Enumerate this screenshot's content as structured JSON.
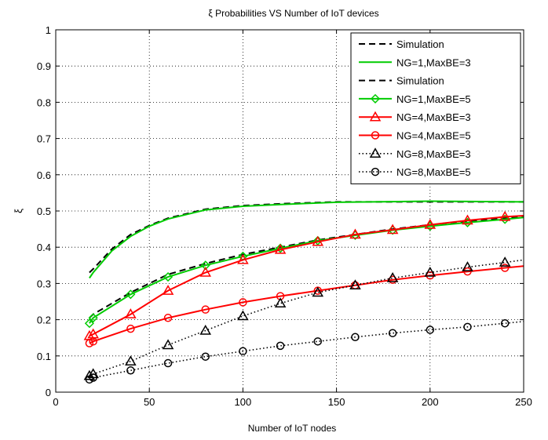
{
  "chart_data": {
    "type": "line",
    "title": "ξ Probabilities VS Number of IoT devices",
    "xlabel": "Number of IoT nodes",
    "ylabel": "ξ",
    "xlim": [
      0,
      250
    ],
    "ylim": [
      0,
      1
    ],
    "xticks": [
      0,
      50,
      100,
      150,
      200,
      250
    ],
    "yticks": [
      0,
      0.1,
      0.2,
      0.3,
      0.4,
      0.5,
      0.6,
      0.7,
      0.8,
      0.9,
      1
    ],
    "xtick_labels": [
      "0",
      "50",
      "100",
      "150",
      "200",
      "250"
    ],
    "ytick_labels": [
      "0",
      "0.1",
      "0.2",
      "0.3",
      "0.4",
      "0.5",
      "0.6",
      "0.7",
      "0.8",
      "0.9",
      "1"
    ],
    "grid": true,
    "legend_position": "top-right",
    "series": [
      {
        "name": "Simulation",
        "color": "#000000",
        "line": "dashed",
        "marker": "none",
        "x": [
          18,
          20,
          30,
          40,
          50,
          60,
          80,
          100,
          120,
          150,
          200,
          250
        ],
        "y": [
          0.33,
          0.34,
          0.395,
          0.435,
          0.46,
          0.48,
          0.505,
          0.515,
          0.52,
          0.525,
          0.525,
          0.525
        ]
      },
      {
        "name": "NG=1,MaxBE=3",
        "color": "#00cc00",
        "line": "solid",
        "marker": "none",
        "x": [
          18,
          20,
          30,
          40,
          50,
          60,
          80,
          100,
          120,
          150,
          200,
          250
        ],
        "y": [
          0.315,
          0.33,
          0.39,
          0.43,
          0.458,
          0.478,
          0.503,
          0.513,
          0.518,
          0.524,
          0.527,
          0.525
        ]
      },
      {
        "name": "Simulation",
        "color": "#000000",
        "line": "dashed",
        "marker": "none",
        "x": [
          18,
          20,
          40,
          60,
          80,
          100,
          120,
          140,
          160,
          180,
          200,
          220,
          240,
          250
        ],
        "y": [
          0.205,
          0.215,
          0.275,
          0.325,
          0.355,
          0.38,
          0.4,
          0.42,
          0.435,
          0.45,
          0.462,
          0.472,
          0.48,
          0.485
        ]
      },
      {
        "name": "NG=1,MaxBE=5",
        "color": "#00cc00",
        "line": "solid",
        "marker": "diamond",
        "x": [
          18,
          20,
          40,
          60,
          80,
          100,
          120,
          140,
          160,
          180,
          200,
          220,
          240,
          250
        ],
        "y": [
          0.19,
          0.205,
          0.27,
          0.318,
          0.35,
          0.375,
          0.397,
          0.418,
          0.433,
          0.447,
          0.458,
          0.468,
          0.477,
          0.482
        ]
      },
      {
        "name": "NG=4,MaxBE=3",
        "color": "#ff0000",
        "line": "solid",
        "marker": "triangle",
        "x": [
          18,
          20,
          40,
          60,
          80,
          100,
          120,
          140,
          160,
          180,
          200,
          220,
          240,
          250
        ],
        "y": [
          0.155,
          0.16,
          0.215,
          0.28,
          0.33,
          0.365,
          0.393,
          0.415,
          0.435,
          0.448,
          0.462,
          0.474,
          0.484,
          0.487
        ]
      },
      {
        "name": "NG=4,MaxBE=5",
        "color": "#ff0000",
        "line": "solid",
        "marker": "circle",
        "x": [
          18,
          20,
          40,
          60,
          80,
          100,
          120,
          140,
          160,
          180,
          200,
          220,
          240,
          250
        ],
        "y": [
          0.135,
          0.14,
          0.175,
          0.205,
          0.228,
          0.248,
          0.265,
          0.28,
          0.295,
          0.31,
          0.322,
          0.333,
          0.343,
          0.348
        ]
      },
      {
        "name": "NG=8,MaxBE=3",
        "color": "#000000",
        "line": "dotted",
        "marker": "triangle",
        "x": [
          18,
          20,
          40,
          60,
          80,
          100,
          120,
          140,
          160,
          180,
          200,
          220,
          240,
          250
        ],
        "y": [
          0.045,
          0.05,
          0.085,
          0.13,
          0.17,
          0.21,
          0.245,
          0.275,
          0.295,
          0.315,
          0.33,
          0.345,
          0.358,
          0.365
        ]
      },
      {
        "name": "NG=8,MaxBE=5",
        "color": "#000000",
        "line": "dotted",
        "marker": "circle",
        "x": [
          18,
          20,
          40,
          60,
          80,
          100,
          120,
          140,
          160,
          180,
          200,
          220,
          240,
          250
        ],
        "y": [
          0.035,
          0.04,
          0.06,
          0.08,
          0.098,
          0.113,
          0.128,
          0.14,
          0.152,
          0.163,
          0.172,
          0.18,
          0.19,
          0.195
        ]
      }
    ]
  }
}
